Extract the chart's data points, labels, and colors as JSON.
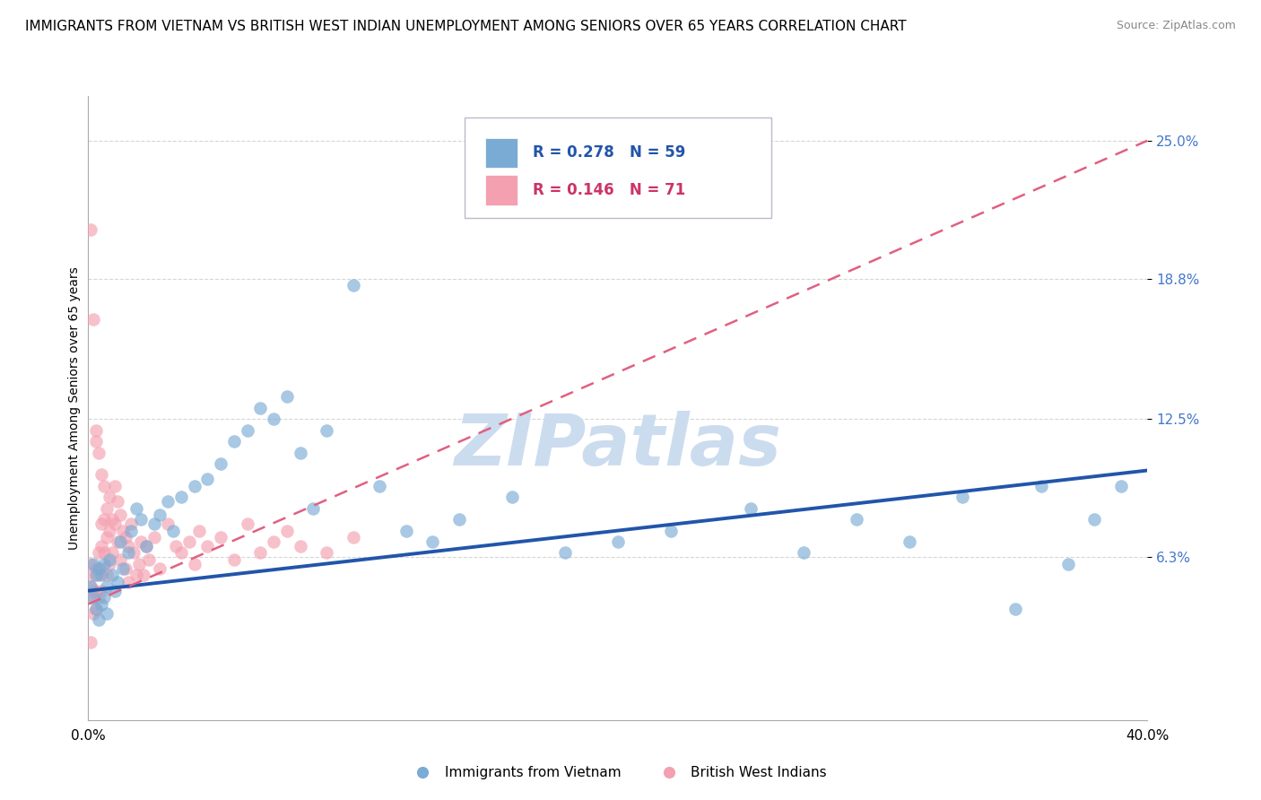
{
  "title": "IMMIGRANTS FROM VIETNAM VS BRITISH WEST INDIAN UNEMPLOYMENT AMONG SENIORS OVER 65 YEARS CORRELATION CHART",
  "source": "Source: ZipAtlas.com",
  "ylabel": "Unemployment Among Seniors over 65 years",
  "x_lim": [
    0.0,
    0.4
  ],
  "y_lim": [
    -0.01,
    0.27
  ],
  "y_ticks": [
    0.063,
    0.125,
    0.188,
    0.25
  ],
  "y_tick_labels": [
    "6.3%",
    "12.5%",
    "18.8%",
    "25.0%"
  ],
  "grid_color": "#cccccc",
  "background_color": "#ffffff",
  "watermark": "ZIPatlas",
  "watermark_color": "#ccdcef",
  "series_blue": {
    "label": "Immigrants from Vietnam",
    "R": "0.278",
    "N": "59",
    "color": "#7aabd4",
    "trend_color": "#2255aa",
    "trend_lw": 2.8,
    "trend_x": [
      0.0,
      0.4
    ],
    "trend_y": [
      0.048,
      0.102
    ],
    "x": [
      0.001,
      0.002,
      0.002,
      0.003,
      0.003,
      0.004,
      0.004,
      0.005,
      0.005,
      0.006,
      0.006,
      0.007,
      0.007,
      0.008,
      0.009,
      0.01,
      0.011,
      0.012,
      0.013,
      0.015,
      0.016,
      0.018,
      0.02,
      0.022,
      0.025,
      0.027,
      0.03,
      0.032,
      0.035,
      0.04,
      0.045,
      0.05,
      0.055,
      0.06,
      0.065,
      0.07,
      0.075,
      0.08,
      0.085,
      0.09,
      0.1,
      0.11,
      0.12,
      0.13,
      0.14,
      0.16,
      0.18,
      0.2,
      0.22,
      0.25,
      0.27,
      0.29,
      0.31,
      0.33,
      0.35,
      0.36,
      0.37,
      0.38,
      0.39
    ],
    "y": [
      0.05,
      0.045,
      0.06,
      0.055,
      0.04,
      0.058,
      0.035,
      0.042,
      0.055,
      0.06,
      0.045,
      0.05,
      0.038,
      0.062,
      0.055,
      0.048,
      0.052,
      0.07,
      0.058,
      0.065,
      0.075,
      0.085,
      0.08,
      0.068,
      0.078,
      0.082,
      0.088,
      0.075,
      0.09,
      0.095,
      0.098,
      0.105,
      0.115,
      0.12,
      0.13,
      0.125,
      0.135,
      0.11,
      0.085,
      0.12,
      0.185,
      0.095,
      0.075,
      0.07,
      0.08,
      0.09,
      0.065,
      0.07,
      0.075,
      0.085,
      0.065,
      0.08,
      0.07,
      0.09,
      0.04,
      0.095,
      0.06,
      0.08,
      0.095
    ]
  },
  "series_pink": {
    "label": "British West Indians",
    "R": "0.146",
    "N": "71",
    "color": "#f4a0b0",
    "trend_color": "#e06080",
    "trend_lw": 1.8,
    "trend_x": [
      0.0,
      0.4
    ],
    "trend_y": [
      0.042,
      0.25
    ],
    "x": [
      0.001,
      0.001,
      0.001,
      0.001,
      0.001,
      0.002,
      0.002,
      0.002,
      0.002,
      0.003,
      0.003,
      0.003,
      0.003,
      0.003,
      0.004,
      0.004,
      0.004,
      0.004,
      0.005,
      0.005,
      0.005,
      0.005,
      0.005,
      0.006,
      0.006,
      0.006,
      0.007,
      0.007,
      0.007,
      0.008,
      0.008,
      0.008,
      0.009,
      0.009,
      0.01,
      0.01,
      0.011,
      0.011,
      0.012,
      0.012,
      0.013,
      0.014,
      0.014,
      0.015,
      0.015,
      0.016,
      0.017,
      0.018,
      0.019,
      0.02,
      0.021,
      0.022,
      0.023,
      0.025,
      0.027,
      0.03,
      0.033,
      0.035,
      0.038,
      0.04,
      0.042,
      0.045,
      0.05,
      0.055,
      0.06,
      0.065,
      0.07,
      0.075,
      0.08,
      0.09,
      0.1
    ],
    "y": [
      0.21,
      0.05,
      0.045,
      0.06,
      0.025,
      0.17,
      0.055,
      0.048,
      0.038,
      0.12,
      0.115,
      0.058,
      0.048,
      0.04,
      0.11,
      0.065,
      0.055,
      0.045,
      0.1,
      0.078,
      0.068,
      0.058,
      0.048,
      0.095,
      0.08,
      0.065,
      0.085,
      0.072,
      0.055,
      0.09,
      0.075,
      0.06,
      0.08,
      0.065,
      0.095,
      0.078,
      0.088,
      0.07,
      0.082,
      0.062,
      0.075,
      0.072,
      0.058,
      0.068,
      0.052,
      0.078,
      0.065,
      0.055,
      0.06,
      0.07,
      0.055,
      0.068,
      0.062,
      0.072,
      0.058,
      0.078,
      0.068,
      0.065,
      0.07,
      0.06,
      0.075,
      0.068,
      0.072,
      0.062,
      0.078,
      0.065,
      0.07,
      0.075,
      0.068,
      0.065,
      0.072
    ]
  },
  "title_fontsize": 11,
  "axis_label_fontsize": 10,
  "tick_fontsize": 11,
  "legend_fontsize": 12,
  "source_fontsize": 9
}
